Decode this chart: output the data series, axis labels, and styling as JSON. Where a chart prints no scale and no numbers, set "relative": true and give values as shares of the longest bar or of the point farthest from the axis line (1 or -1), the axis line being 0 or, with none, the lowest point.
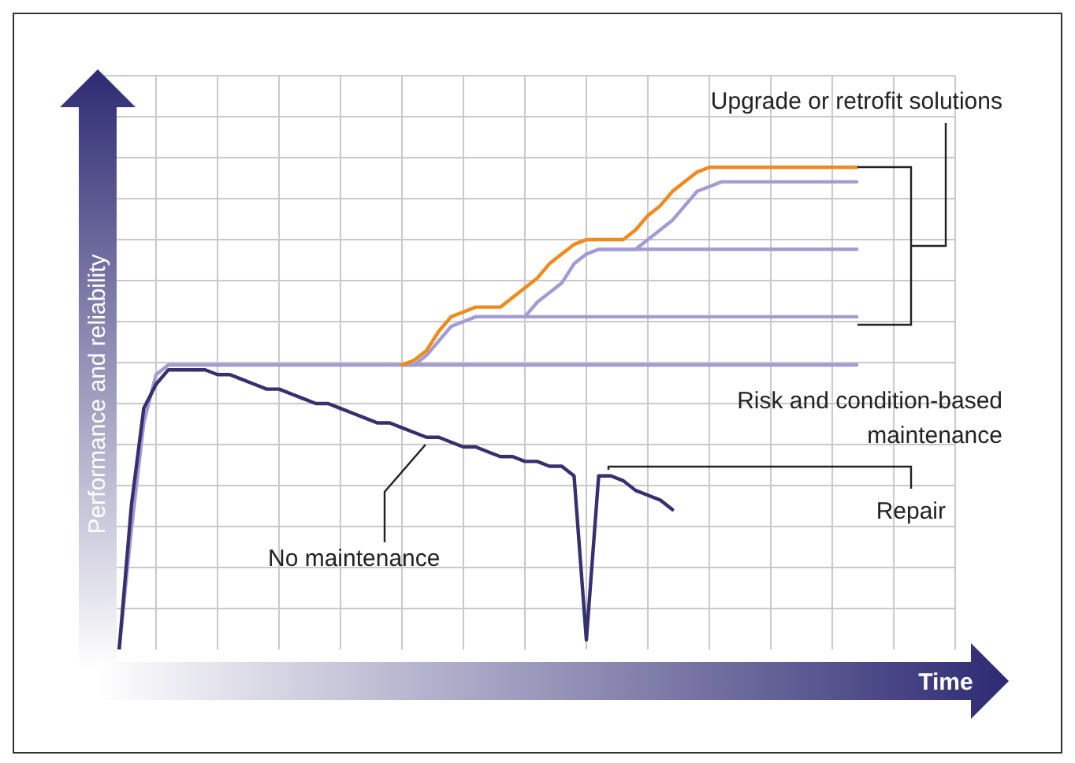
{
  "chart_data": {
    "type": "line",
    "relative": true,
    "xlabel": "Time",
    "ylabel": "Performance and reliability",
    "grid": true,
    "categories": [
      null,
      null,
      null,
      null,
      null,
      null,
      null,
      null,
      null,
      null,
      null,
      null,
      null,
      null,
      null,
      null,
      null,
      null,
      null,
      null,
      null,
      null,
      null,
      null,
      null,
      null,
      null,
      null,
      null,
      null,
      null,
      null,
      null,
      null,
      null,
      null,
      null,
      null,
      null,
      null,
      null,
      null,
      null,
      null,
      null,
      null,
      null,
      null,
      null,
      null,
      null,
      null,
      null,
      null,
      null,
      null,
      null,
      null,
      null,
      null,
      null
    ],
    "series": [
      {
        "color": "#a39cd2",
        "values": [
          0,
          0.25,
          0.47,
          0.57,
          0.59,
          0.59,
          0.59,
          0.59,
          0.59,
          0.59,
          0.59,
          0.59,
          0.59,
          0.59,
          0.59,
          0.59,
          0.59,
          0.59,
          0.59,
          0.59,
          0.59,
          0.59,
          0.59,
          0.59,
          0.59,
          0.59,
          0.59,
          0.59,
          0.59,
          0.59,
          0.59,
          0.59,
          0.59,
          0.59,
          0.59,
          0.59,
          0.59,
          0.59,
          0.59,
          0.59,
          0.59,
          0.59,
          0.59,
          0.59,
          0.59,
          0.59,
          0.59,
          0.59,
          0.59,
          0.59,
          0.59,
          0.59,
          0.59,
          0.59,
          0.59,
          0.59,
          0.59,
          0.59,
          0.59,
          0.59,
          0.59
        ]
      },
      {
        "color": "#a39cd2",
        "values": [
          null,
          null,
          null,
          null,
          null,
          null,
          null,
          null,
          null,
          null,
          null,
          null,
          null,
          null,
          null,
          null,
          null,
          null,
          null,
          null,
          null,
          null,
          null,
          0.59,
          0.59,
          0.61,
          0.64,
          0.67,
          0.68,
          0.69,
          0.69,
          0.69,
          0.69,
          0.69,
          0.69,
          0.69,
          0.69,
          0.69,
          0.69,
          0.69,
          0.69,
          0.69,
          0.69,
          0.69,
          0.69,
          0.69,
          0.69,
          0.69,
          0.69,
          0.69,
          0.69,
          0.69,
          0.69,
          0.69,
          0.69,
          0.69,
          0.69,
          0.69,
          0.69,
          0.69,
          0.69
        ]
      },
      {
        "color": "#a39cd2",
        "values": [
          null,
          null,
          null,
          null,
          null,
          null,
          null,
          null,
          null,
          null,
          null,
          null,
          null,
          null,
          null,
          null,
          null,
          null,
          null,
          null,
          null,
          null,
          null,
          null,
          null,
          null,
          null,
          null,
          null,
          0.69,
          0.69,
          0.69,
          0.69,
          0.69,
          0.72,
          0.74,
          0.76,
          0.8,
          0.82,
          0.83,
          0.83,
          0.83,
          0.83,
          0.83,
          0.83,
          0.83,
          0.83,
          0.83,
          0.83,
          0.83,
          0.83,
          0.83,
          0.83,
          0.83,
          0.83,
          0.83,
          0.83,
          0.83,
          0.83,
          0.83,
          0.83
        ]
      },
      {
        "color": "#a39cd2",
        "values": [
          null,
          null,
          null,
          null,
          null,
          null,
          null,
          null,
          null,
          null,
          null,
          null,
          null,
          null,
          null,
          null,
          null,
          null,
          null,
          null,
          null,
          null,
          null,
          null,
          null,
          null,
          null,
          null,
          null,
          null,
          null,
          null,
          null,
          null,
          null,
          null,
          null,
          null,
          null,
          0.83,
          0.83,
          0.83,
          0.83,
          0.85,
          0.87,
          0.89,
          0.92,
          0.95,
          0.96,
          0.97,
          0.97,
          0.97,
          0.97,
          0.97,
          0.97,
          0.97,
          0.97,
          0.97,
          0.97,
          0.97,
          0.97
        ]
      },
      {
        "color": "#f08a1c",
        "values": [
          null,
          null,
          null,
          null,
          null,
          null,
          null,
          null,
          null,
          null,
          null,
          null,
          null,
          null,
          null,
          null,
          null,
          null,
          null,
          null,
          null,
          null,
          null,
          0.59,
          0.6,
          0.62,
          0.66,
          0.69,
          0.7,
          0.71,
          0.71,
          0.71,
          0.73,
          0.75,
          0.77,
          0.8,
          0.82,
          0.84,
          0.85,
          0.85,
          0.85,
          0.85,
          0.87,
          0.9,
          0.92,
          0.95,
          0.97,
          0.99,
          1,
          1,
          1,
          1,
          1,
          1,
          1,
          1,
          1,
          1,
          1,
          1,
          1
        ]
      },
      {
        "color": "#35306e",
        "values": [
          0,
          0.3,
          0.5,
          0.55,
          0.58,
          0.58,
          0.58,
          0.58,
          0.57,
          0.57,
          0.56,
          0.55,
          0.54,
          0.54,
          0.53,
          0.52,
          0.51,
          0.51,
          0.5,
          0.49,
          0.48,
          0.47,
          0.47,
          0.46,
          0.45,
          0.44,
          0.44,
          0.43,
          0.42,
          0.42,
          0.41,
          0.4,
          0.4,
          0.39,
          0.39,
          0.38,
          0.38,
          0.36,
          0.02,
          0.36,
          0.36,
          0.35,
          0.33,
          0.32,
          0.31,
          0.29,
          null,
          null,
          null,
          null,
          null,
          null,
          null,
          null,
          null,
          null,
          null,
          null,
          null,
          null,
          null
        ]
      }
    ],
    "annotations": [
      "Upgrade or retrofit solutions",
      "Risk and condition-based maintenance",
      "Repair",
      "No maintenance"
    ]
  }
}
